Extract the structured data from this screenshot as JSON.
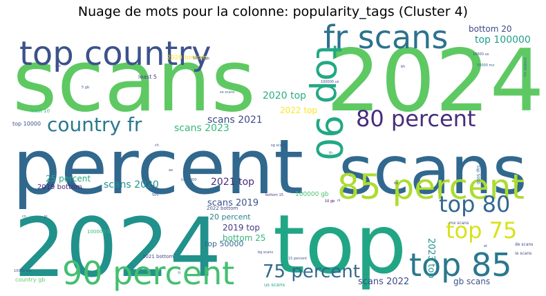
{
  "chart_data": {
    "type": "wordcloud",
    "title": "Nuage de mots pour la colonne: popularity_tags (Cluster 4)",
    "words": [
      {
        "text": "scans",
        "color": "#5ec962"
      },
      {
        "text": "2024",
        "color": "#5ec962"
      },
      {
        "text": "percent",
        "color": "#31688e"
      },
      {
        "text": "scans",
        "color": "#31688e"
      },
      {
        "text": "2024",
        "color": "#21918c"
      },
      {
        "text": "top",
        "color": "#21a685"
      },
      {
        "text": "top country",
        "color": "#3b528b"
      },
      {
        "text": "fr scans",
        "color": "#2c728e"
      },
      {
        "text": "top 90",
        "color": "#22a884"
      },
      {
        "text": "85 percent",
        "color": "#addc30"
      },
      {
        "text": "80 percent",
        "color": "#472d7b"
      },
      {
        "text": "country fr",
        "color": "#2a788e"
      },
      {
        "text": "90 percent",
        "color": "#44bf70"
      },
      {
        "text": "top 85",
        "color": "#2a788e"
      },
      {
        "text": "top 80",
        "color": "#31688e"
      },
      {
        "text": "top 75",
        "color": "#d8e219"
      },
      {
        "text": "75 percent",
        "color": "#31688e"
      },
      {
        "text": "scans 2021",
        "color": "#3e4a89"
      },
      {
        "text": "scans 2023",
        "color": "#35b779"
      },
      {
        "text": "scans 2020",
        "color": "#21918c"
      },
      {
        "text": "2020 top",
        "color": "#26ad81"
      },
      {
        "text": "2022 top",
        "color": "#fde725"
      },
      {
        "text": "2021 top",
        "color": "#472c7a"
      },
      {
        "text": "scans 2019",
        "color": "#3b528b"
      },
      {
        "text": "top 100000",
        "color": "#1f9e89"
      },
      {
        "text": "bottom 20",
        "color": "#3e4a89"
      },
      {
        "text": "25 percent",
        "color": "#22a884"
      },
      {
        "text": "2019 bottom",
        "color": "#482878"
      },
      {
        "text": "2019 top",
        "color": "#443983"
      },
      {
        "text": "top 50000",
        "color": "#31688e"
      },
      {
        "text": "bottom 25",
        "color": "#35b779"
      },
      {
        "text": "20 percent",
        "color": "#26828e"
      },
      {
        "text": "2023 top",
        "color": "#21918c"
      },
      {
        "text": "scans 2022",
        "color": "#3e4a89"
      },
      {
        "text": "gb scans",
        "color": "#3b528b"
      },
      {
        "text": "100000 gb",
        "color": "#4ac16d"
      },
      {
        "text": "2022 bottom",
        "color": "#3e4a89"
      },
      {
        "text": "top 1000",
        "color": "#31688e"
      },
      {
        "text": "top 10000",
        "color": "#3b528b"
      },
      {
        "text": "least 5",
        "color": "#433e85"
      },
      {
        "text": "least 10",
        "color": "#35b779"
      },
      {
        "text": "2020 bottom",
        "color": "#fde725"
      },
      {
        "text": "50000 gb",
        "color": "#3b528b"
      },
      {
        "text": "10000 us",
        "color": "#3e4a89"
      },
      {
        "text": "50000 mx",
        "color": "#31688e"
      },
      {
        "text": "100000 us",
        "color": "#3e4a89"
      },
      {
        "text": "100000 mx",
        "color": "#31688e"
      },
      {
        "text": "100000 fr",
        "color": "#35b779"
      },
      {
        "text": "10000 mx",
        "color": "#3b528b"
      },
      {
        "text": "2021 bottom",
        "color": "#3e4a89"
      },
      {
        "text": "country gb",
        "color": "#5ec962"
      },
      {
        "text": "bottom 15",
        "color": "#46327e"
      },
      {
        "text": "10 gb",
        "color": "#440154"
      },
      {
        "text": "15 percent",
        "color": "#3b528b"
      },
      {
        "text": "us scans",
        "color": "#22a884"
      },
      {
        "text": "mx scans",
        "color": "#3e4a89"
      },
      {
        "text": "de scans",
        "color": "#3e4a89"
      },
      {
        "text": "ie scans",
        "color": "#3e4a89"
      },
      {
        "text": "se scans",
        "color": "#31688e"
      },
      {
        "text": "sg scans",
        "color": "#3b528b"
      },
      {
        "text": "bg scans",
        "color": "#3b528b"
      },
      {
        "text": "top 5000",
        "color": "#31688e"
      },
      {
        "text": "jp",
        "color": "#3e4a89"
      },
      {
        "text": "bb",
        "color": "#3b528b"
      },
      {
        "text": "ch",
        "color": "#3b528b"
      },
      {
        "text": "th",
        "color": "#3b528b"
      },
      {
        "text": "cn",
        "color": "#3b528b"
      },
      {
        "text": "bh",
        "color": "#3b528b"
      },
      {
        "text": "nl",
        "color": "#3b528b"
      },
      {
        "text": "lt",
        "color": "#3b528b"
      },
      {
        "text": "ae",
        "color": "#3b528b"
      },
      {
        "text": "et",
        "color": "#3b528b"
      },
      {
        "text": "5 gb",
        "color": "#3b528b"
      },
      {
        "text": "500",
        "color": "#3b528b"
      },
      {
        "text": "mx",
        "color": "#3b528b"
      }
    ]
  }
}
